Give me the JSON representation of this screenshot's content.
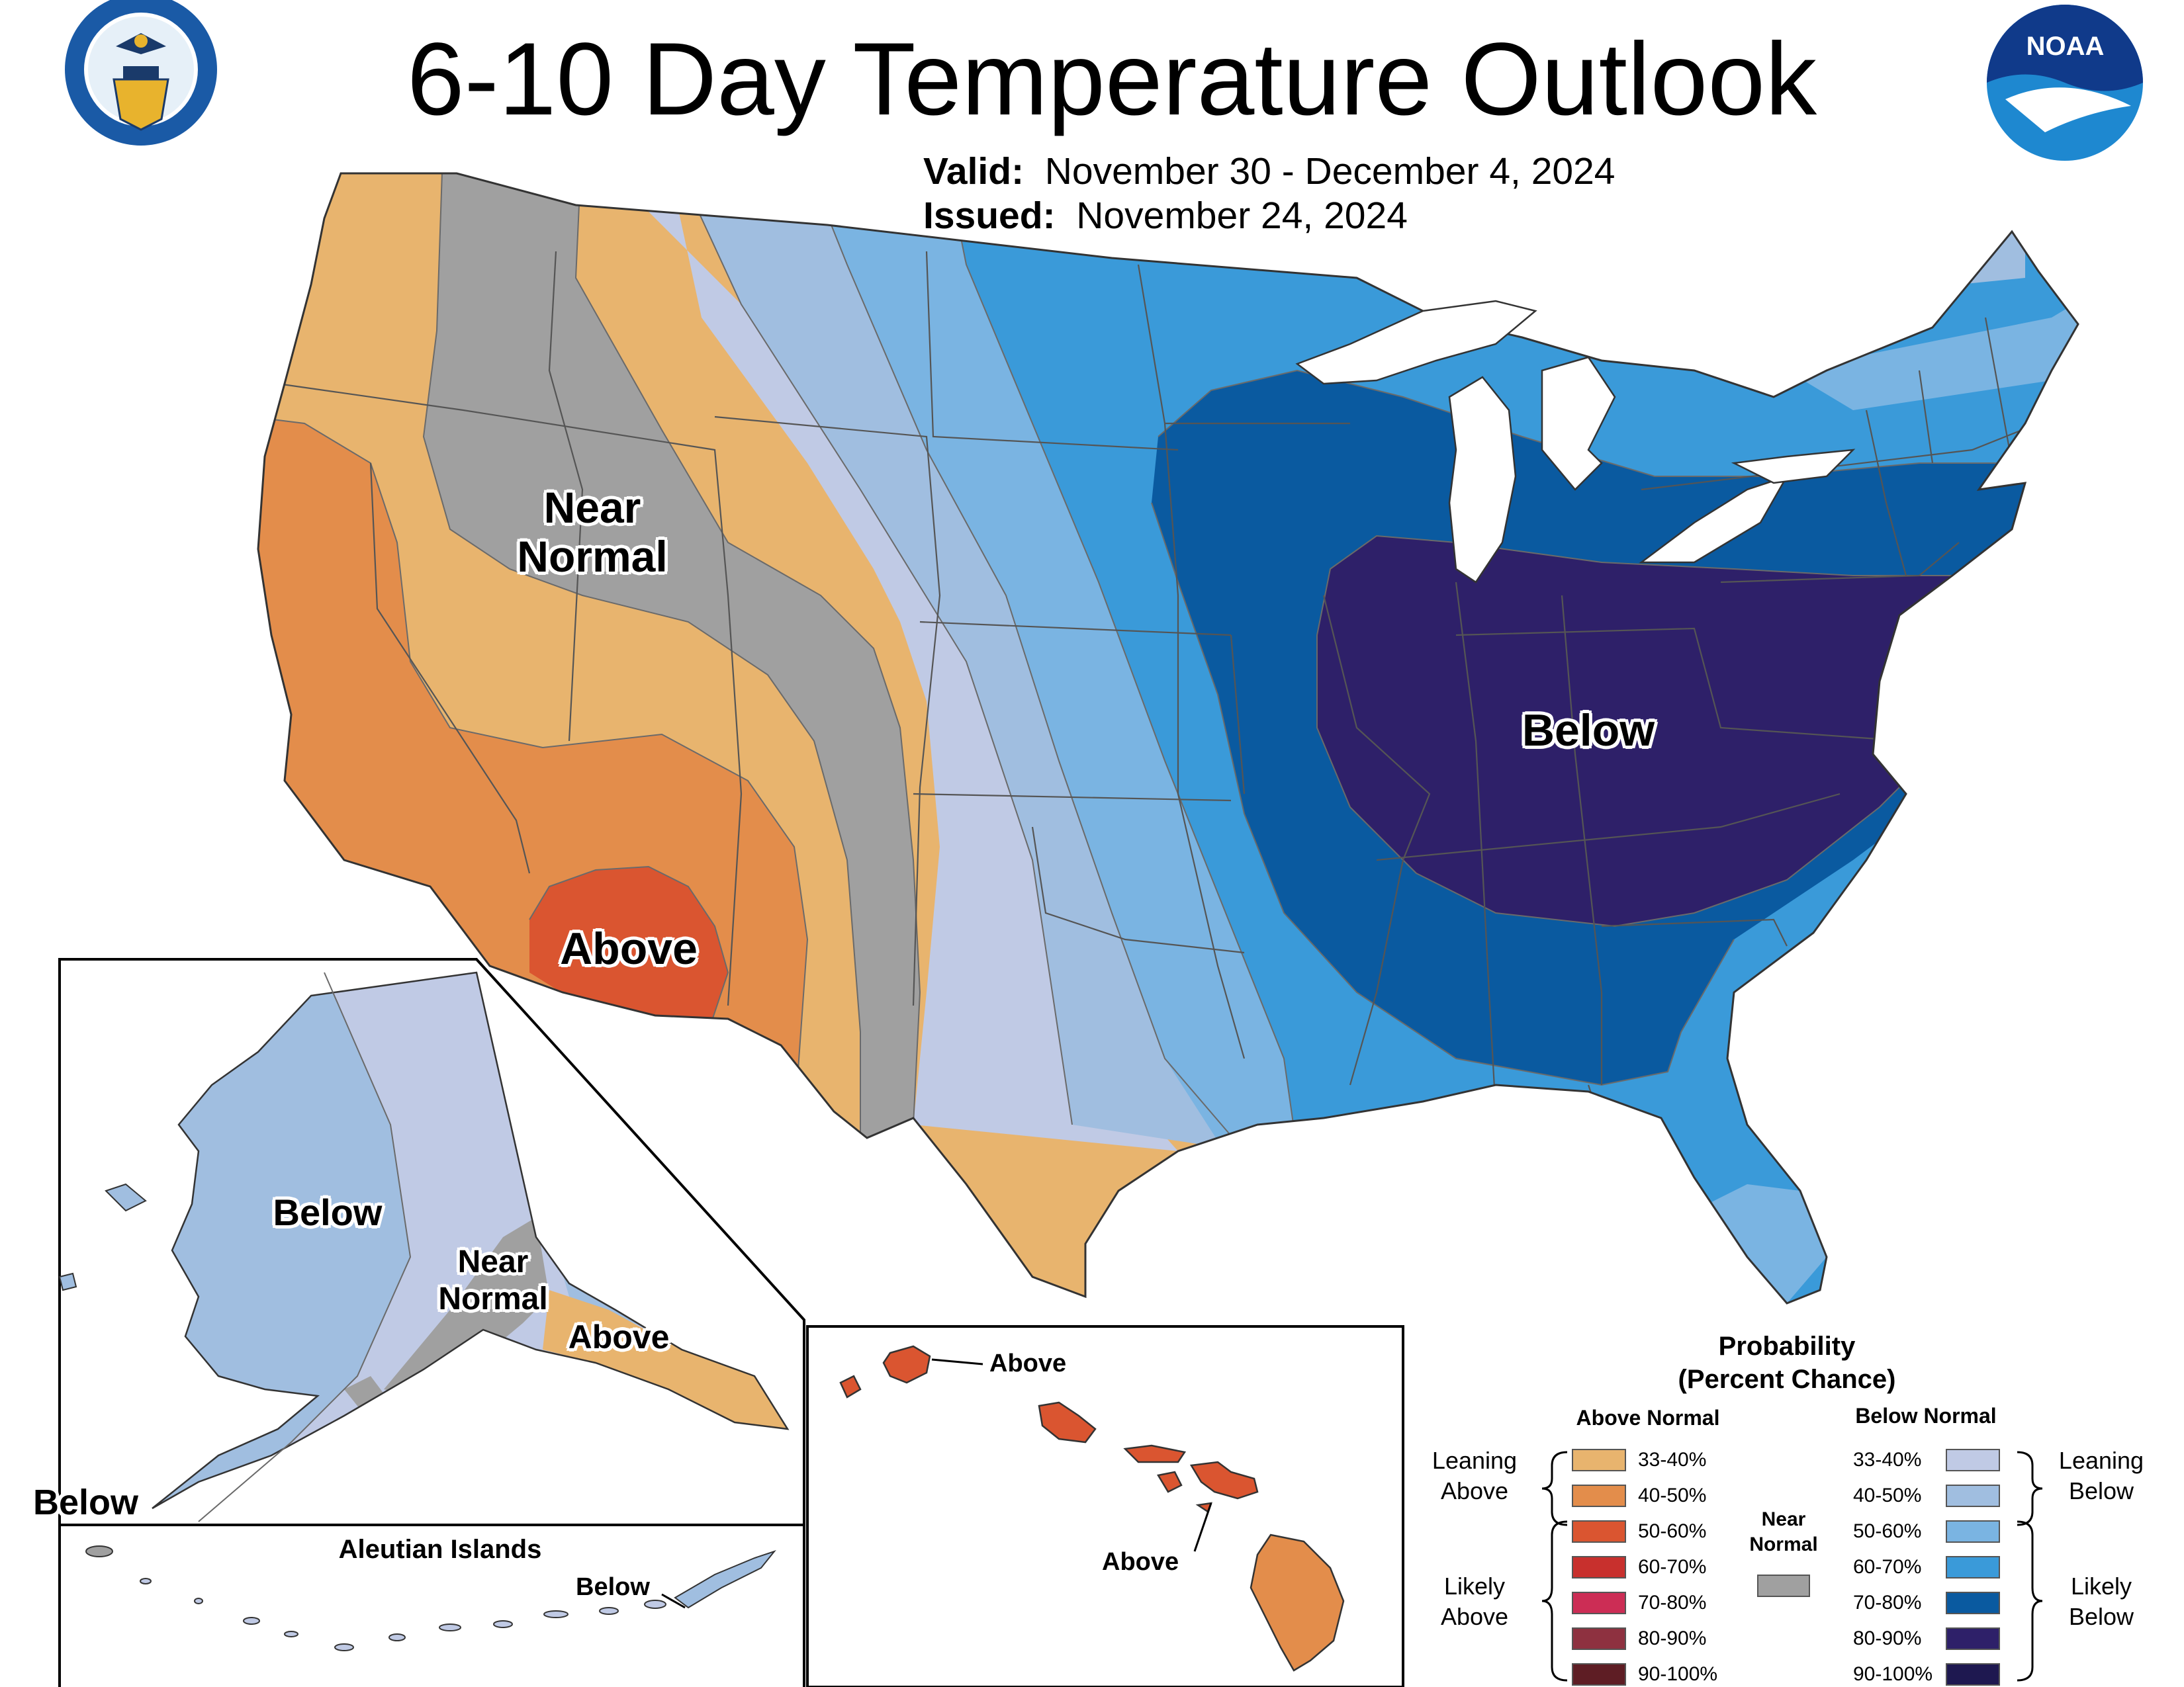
{
  "title": "6-10 Day Temperature Outlook",
  "valid_label": "Valid:",
  "valid_value": "November 30 - December 4, 2024",
  "issued_label": "Issued:",
  "issued_value": "November 24, 2024",
  "seals": {
    "commerce": "DEPARTMENT OF COMMERCE · UNITED STATES OF AMERICA",
    "noaa": "NOAA"
  },
  "map_labels": {
    "conus_near_normal_1": "Near",
    "conus_near_normal_2": "Normal",
    "conus_above": "Above",
    "conus_below": "Below",
    "ak_below": "Below",
    "ak_near_1": "Near",
    "ak_near_2": "Normal",
    "ak_above": "Above",
    "ak_below_corner": "Below",
    "aleutian_title": "Aleutian Islands",
    "aleutian_below": "Below",
    "hi_above_1": "Above",
    "hi_above_2": "Above"
  },
  "legend": {
    "title_1": "Probability",
    "title_2": "(Percent Chance)",
    "above_header": "Above Normal",
    "below_header": "Below Normal",
    "near_1": "Near",
    "near_2": "Normal",
    "leaning_above_1": "Leaning",
    "leaning_above_2": "Above",
    "likely_above_1": "Likely",
    "likely_above_2": "Above",
    "leaning_below_1": "Leaning",
    "leaning_below_2": "Below",
    "likely_below_1": "Likely",
    "likely_below_2": "Below",
    "above_ranges": [
      "33-40%",
      "40-50%",
      "50-60%",
      "60-70%",
      "70-80%",
      "80-90%",
      "90-100%"
    ],
    "below_ranges": [
      "33-40%",
      "40-50%",
      "50-60%",
      "60-70%",
      "70-80%",
      "80-90%",
      "90-100%"
    ],
    "above_colors": [
      "#E8B46E",
      "#E38D4B",
      "#DA5530",
      "#C8302D",
      "#CC2D55",
      "#8E3140",
      "#5E1D24"
    ],
    "below_colors": [
      "#C0CAE5",
      "#A0BEE0",
      "#7AB4E2",
      "#3A9AD9",
      "#0A5AA0",
      "#2E2069",
      "#1E1850"
    ],
    "near_color": "#A0A0A0"
  }
}
